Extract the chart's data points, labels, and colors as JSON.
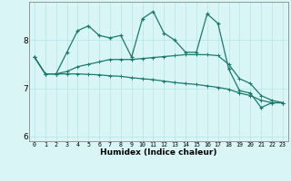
{
  "title": "",
  "xlabel": "Humidex (Indice chaleur)",
  "ylabel": "",
  "background_color": "#d9f5f5",
  "grid_color": "#b8e8e8",
  "line_color": "#1a7a6e",
  "x_values": [
    0,
    1,
    2,
    3,
    4,
    5,
    6,
    7,
    8,
    9,
    10,
    11,
    12,
    13,
    14,
    15,
    16,
    17,
    18,
    19,
    20,
    21,
    22,
    23
  ],
  "series1": [
    7.65,
    7.3,
    7.3,
    7.75,
    8.2,
    8.3,
    8.1,
    8.05,
    8.1,
    7.65,
    8.45,
    8.6,
    8.15,
    8.0,
    7.75,
    7.75,
    8.55,
    8.35,
    7.4,
    6.95,
    6.9,
    6.6,
    6.7,
    6.7
  ],
  "series2": [
    7.65,
    7.3,
    7.3,
    7.35,
    7.45,
    7.5,
    7.55,
    7.6,
    7.6,
    7.6,
    7.62,
    7.64,
    7.66,
    7.68,
    7.7,
    7.7,
    7.7,
    7.68,
    7.5,
    7.2,
    7.1,
    6.85,
    6.75,
    6.7
  ],
  "series3": [
    7.65,
    7.3,
    7.3,
    7.3,
    7.3,
    7.29,
    7.28,
    7.26,
    7.25,
    7.22,
    7.2,
    7.18,
    7.15,
    7.12,
    7.1,
    7.08,
    7.05,
    7.02,
    6.98,
    6.9,
    6.85,
    6.75,
    6.7,
    6.7
  ],
  "ylim": [
    5.9,
    8.8
  ],
  "yticks": [
    6,
    7,
    8
  ],
  "xlim": [
    -0.5,
    23.5
  ]
}
